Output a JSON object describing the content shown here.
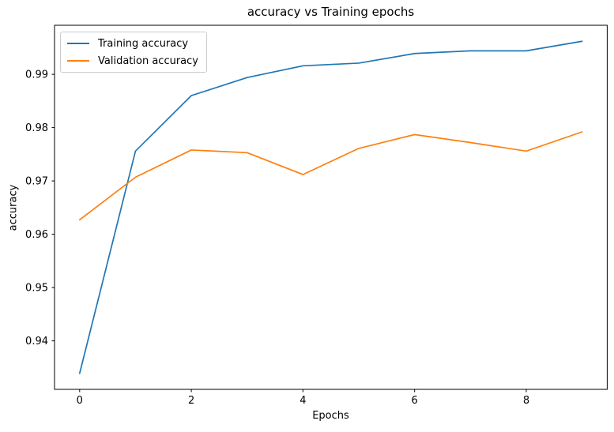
{
  "chart_data": {
    "type": "line",
    "title": "accuracy vs Training epochs",
    "xlabel": "Epochs",
    "ylabel": "accuracy",
    "x": [
      0,
      1,
      2,
      3,
      4,
      5,
      6,
      7,
      8,
      9
    ],
    "series": [
      {
        "name": "Training accuracy",
        "color": "#1f77b4",
        "values": [
          0.9339,
          0.9756,
          0.986,
          0.9894,
          0.9916,
          0.9921,
          0.9939,
          0.9944,
          0.9944,
          0.9962
        ]
      },
      {
        "name": "Validation accuracy",
        "color": "#ff7f0e",
        "values": [
          0.9627,
          0.9707,
          0.9758,
          0.9753,
          0.9712,
          0.9761,
          0.9787,
          0.9772,
          0.9756,
          0.9792
        ]
      }
    ],
    "xlim": [
      -0.45,
      9.45
    ],
    "ylim": [
      0.9309,
      0.9992
    ],
    "xticks": [
      0,
      2,
      4,
      6,
      8
    ],
    "yticks": [
      0.94,
      0.95,
      0.96,
      0.97,
      0.98,
      0.99
    ],
    "grid": false,
    "legend_position": "upper left",
    "axis_color": "#000000",
    "text_color": "#000000",
    "background_color": "#ffffff"
  }
}
